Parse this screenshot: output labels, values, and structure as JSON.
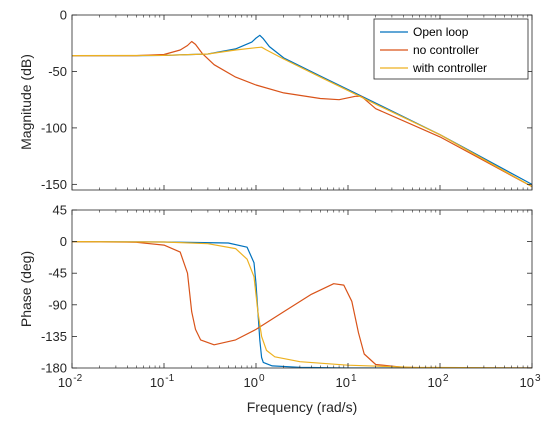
{
  "chart_data": [
    {
      "type": "line",
      "panel": "magnitude",
      "ylabel": "Magnitude (dB)",
      "xscale": "log",
      "xlim": [
        0.01,
        1000
      ],
      "ylim": [
        -155,
        0
      ],
      "yticks": [
        0,
        -50,
        -100,
        -150
      ],
      "ytick_labels": [
        "0",
        "-50",
        "-100",
        "-150"
      ],
      "grid": false,
      "legend_position": "top-right",
      "series": [
        {
          "name": "Open loop",
          "color": "#0072BD",
          "x": [
            0.01,
            0.05,
            0.1,
            0.3,
            0.6,
            0.9,
            1.0,
            1.1,
            1.2,
            1.4,
            2,
            5,
            10,
            100,
            1000
          ],
          "y": [
            -36,
            -36,
            -35.8,
            -34.5,
            -30,
            -24,
            -20.5,
            -18,
            -21,
            -28,
            -38,
            -54,
            -66,
            -106,
            -150
          ]
        },
        {
          "name": "no controller",
          "color": "#D95319",
          "x": [
            0.01,
            0.05,
            0.1,
            0.15,
            0.18,
            0.2,
            0.22,
            0.26,
            0.35,
            0.6,
            1,
            2,
            5,
            8,
            12,
            14,
            20,
            100,
            1000
          ],
          "y": [
            -36,
            -36,
            -35,
            -31,
            -27,
            -23.5,
            -26,
            -34,
            -44,
            -55,
            -62,
            -69,
            -74,
            -75,
            -72,
            -72,
            -83,
            -108,
            -152
          ]
        },
        {
          "name": "with controller",
          "color": "#EDB120",
          "x": [
            0.01,
            0.1,
            0.3,
            0.6,
            1.0,
            1.15,
            1.3,
            2,
            5,
            10,
            20,
            100,
            1000
          ],
          "y": [
            -36,
            -35.8,
            -34.5,
            -31,
            -29,
            -28.5,
            -31,
            -39,
            -55,
            -67,
            -79,
            -106,
            -152
          ]
        }
      ]
    },
    {
      "type": "line",
      "panel": "phase",
      "xlabel": "Frequency  (rad/s)",
      "ylabel": "Phase (deg)",
      "xscale": "log",
      "xlim": [
        0.01,
        1000
      ],
      "ylim": [
        -180,
        45
      ],
      "xticks": [
        0.01,
        0.1,
        1,
        10,
        100,
        1000
      ],
      "xtick_labels": [
        [
          "10",
          "-2"
        ],
        [
          "10",
          "-1"
        ],
        [
          "10",
          "0"
        ],
        [
          "10",
          "1"
        ],
        [
          "10",
          "2"
        ],
        [
          "10",
          "3"
        ]
      ],
      "yticks": [
        45,
        0,
        -45,
        -90,
        -135,
        -180
      ],
      "ytick_labels": [
        "45",
        "0",
        "-45",
        "-90",
        "-135",
        "-180"
      ],
      "grid": false,
      "series": [
        {
          "name": "Open loop",
          "color": "#0072BD",
          "x": [
            0.01,
            0.1,
            0.5,
            0.8,
            0.95,
            1.0,
            1.05,
            1.1,
            1.15,
            1.2,
            1.5,
            3,
            10,
            100,
            1000
          ],
          "y": [
            0,
            -0.5,
            -2,
            -8,
            -30,
            -60,
            -100,
            -140,
            -165,
            -172,
            -177,
            -179,
            -180,
            -180,
            -180
          ]
        },
        {
          "name": "no controller",
          "color": "#D95319",
          "x": [
            0.01,
            0.05,
            0.1,
            0.15,
            0.18,
            0.2,
            0.22,
            0.25,
            0.35,
            0.6,
            1,
            2,
            4,
            7,
            9,
            11,
            13,
            15,
            20,
            40,
            100,
            1000
          ],
          "y": [
            0,
            -1,
            -5,
            -15,
            -45,
            -100,
            -125,
            -140,
            -147,
            -140,
            -125,
            -100,
            -75,
            -60,
            -62,
            -85,
            -130,
            -160,
            -175,
            -179,
            -180,
            -180
          ]
        },
        {
          "name": "with controller",
          "color": "#EDB120",
          "x": [
            0.01,
            0.1,
            0.3,
            0.6,
            0.8,
            0.95,
            1.05,
            1.15,
            1.3,
            1.6,
            3,
            10,
            50,
            1000
          ],
          "y": [
            0,
            -0.5,
            -3,
            -10,
            -25,
            -50,
            -100,
            -135,
            -155,
            -164,
            -171,
            -176,
            -179,
            -180
          ]
        }
      ]
    }
  ]
}
